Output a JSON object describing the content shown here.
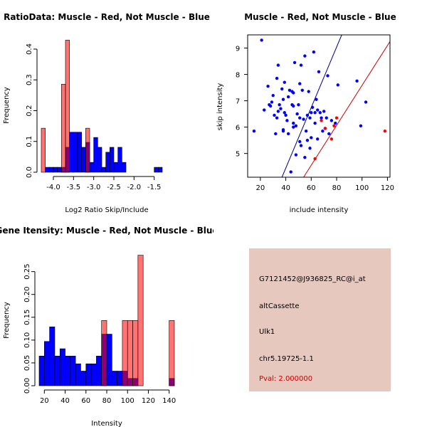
{
  "panels": {
    "ratio_hist": {
      "type": "bar",
      "title": "RatioData: Muscle - Red, Not Muscle - Blue",
      "xlabel": "Log2 Ratio Skip/Include",
      "ylabel": "Frequency",
      "xlim": [
        -4.3,
        -1.0
      ],
      "ylim": [
        0,
        0.43
      ],
      "xticks": [
        -4.0,
        -3.5,
        -3.0,
        -2.5,
        -2.0,
        -1.5
      ],
      "xtick_labels": [
        "-4.0",
        "-3.5",
        "-3.0",
        "-2.5",
        "-2.0",
        "-1.5"
      ],
      "yticks": [
        0.0,
        0.1,
        0.2,
        0.3,
        0.4
      ],
      "ytick_labels": [
        "0.0",
        "0.1",
        "0.2",
        "0.3",
        "0.4"
      ],
      "series": [
        {
          "name": "Not Muscle",
          "color": "#0000ff",
          "bins": [
            [
              -4.2,
              -4.1,
              0.016
            ],
            [
              -4.1,
              -4.0,
              0.016
            ],
            [
              -4.0,
              -3.9,
              0.016
            ],
            [
              -3.9,
              -3.8,
              0.016
            ],
            [
              -3.8,
              -3.7,
              0.016
            ],
            [
              -3.7,
              -3.6,
              0.081
            ],
            [
              -3.6,
              -3.5,
              0.13
            ],
            [
              -3.5,
              -3.4,
              0.13
            ],
            [
              -3.4,
              -3.3,
              0.13
            ],
            [
              -3.3,
              -3.2,
              0.081
            ],
            [
              -3.2,
              -3.1,
              0.097
            ],
            [
              -3.1,
              -3.0,
              0.032
            ],
            [
              -3.0,
              -2.9,
              0.113
            ],
            [
              -2.9,
              -2.8,
              0.081
            ],
            [
              -2.8,
              -2.7,
              0.016
            ],
            [
              -2.7,
              -2.6,
              0.065
            ],
            [
              -2.6,
              -2.5,
              0.081
            ],
            [
              -2.5,
              -2.4,
              0.032
            ],
            [
              -2.4,
              -2.3,
              0.081
            ],
            [
              -2.3,
              -2.2,
              0.032
            ],
            [
              -1.5,
              -1.4,
              0.016
            ],
            [
              -1.4,
              -1.3,
              0.016
            ]
          ]
        },
        {
          "name": "Muscle",
          "color": "#ff0000",
          "bins": [
            [
              -4.3,
              -4.2,
              0.143
            ],
            [
              -3.8,
              -3.7,
              0.286
            ],
            [
              -3.7,
              -3.6,
              0.429
            ],
            [
              -3.2,
              -3.1,
              0.143
            ]
          ]
        }
      ]
    },
    "scatter": {
      "type": "scatter",
      "title": "Muscle - Red, Not Muscle - Blue",
      "xlabel": "include intensity",
      "ylabel": "skip intensity",
      "xlim": [
        10,
        122
      ],
      "ylim": [
        4.1,
        9.5
      ],
      "xticks": [
        20,
        40,
        60,
        80,
        100,
        120
      ],
      "xtick_labels": [
        "20",
        "40",
        "60",
        "80",
        "100",
        "120"
      ],
      "yticks": [
        5,
        6,
        7,
        8,
        9
      ],
      "ytick_labels": [
        "5",
        "6",
        "7",
        "8",
        "9"
      ],
      "blue_points": [
        [
          15,
          5.85
        ],
        [
          21,
          9.3
        ],
        [
          23,
          6.65
        ],
        [
          26,
          7.55
        ],
        [
          27,
          6.85
        ],
        [
          28,
          6.8
        ],
        [
          29,
          6.95
        ],
        [
          30,
          7.2
        ],
        [
          31,
          6.45
        ],
        [
          32,
          5.75
        ],
        [
          33,
          6.35
        ],
        [
          33,
          7.85
        ],
        [
          34,
          6.6
        ],
        [
          34,
          8.35
        ],
        [
          35,
          6.85
        ],
        [
          36,
          6.7
        ],
        [
          37,
          7.45
        ],
        [
          38,
          5.85
        ],
        [
          38,
          5.9
        ],
        [
          38,
          7.05
        ],
        [
          39,
          6.55
        ],
        [
          39,
          7.7
        ],
        [
          40,
          6.45
        ],
        [
          41,
          6.25
        ],
        [
          42,
          7.15
        ],
        [
          42,
          5.75
        ],
        [
          43,
          7.4
        ],
        [
          44,
          4.3
        ],
        [
          45,
          6.85
        ],
        [
          45,
          7.35
        ],
        [
          46,
          6.0
        ],
        [
          46,
          6.15
        ],
        [
          46,
          6.8
        ],
        [
          46,
          7.3
        ],
        [
          47,
          8.45
        ],
        [
          48,
          4.95
        ],
        [
          48,
          6.05
        ],
        [
          49,
          6.5
        ],
        [
          50,
          6.85
        ],
        [
          51,
          5.45
        ],
        [
          51,
          6.35
        ],
        [
          51,
          7.65
        ],
        [
          52,
          8.35
        ],
        [
          52,
          5.3
        ],
        [
          53,
          7.4
        ],
        [
          54,
          6.3
        ],
        [
          55,
          8.7
        ],
        [
          55,
          4.85
        ],
        [
          56,
          5.85
        ],
        [
          57,
          5.5
        ],
        [
          57,
          6.45
        ],
        [
          58,
          7.35
        ],
        [
          59,
          6.35
        ],
        [
          59,
          5.2
        ],
        [
          60,
          6.55
        ],
        [
          60,
          5.6
        ],
        [
          61,
          6.75
        ],
        [
          62,
          8.85
        ],
        [
          63,
          6.15
        ],
        [
          63,
          6.55
        ],
        [
          64,
          7.05
        ],
        [
          65,
          6.65
        ],
        [
          65,
          5.55
        ],
        [
          66,
          8.1
        ],
        [
          67,
          6.55
        ],
        [
          68,
          6.35
        ],
        [
          69,
          5.85
        ],
        [
          70,
          6.6
        ],
        [
          71,
          5.95
        ],
        [
          72,
          6.35
        ],
        [
          73,
          7.95
        ],
        [
          74,
          5.75
        ],
        [
          76,
          6.25
        ],
        [
          79,
          6.15
        ],
        [
          81,
          7.6
        ],
        [
          96,
          7.75
        ],
        [
          99,
          6.05
        ],
        [
          103,
          6.95
        ]
      ],
      "red_points": [
        [
          63,
          4.8
        ],
        [
          68,
          6.25
        ],
        [
          71,
          5.95
        ],
        [
          76,
          5.55
        ],
        [
          78,
          6.05
        ],
        [
          80,
          6.35
        ],
        [
          118,
          5.85
        ]
      ],
      "lines": [
        {
          "color": "#00008b",
          "from": [
            37,
            4.1
          ],
          "to": [
            84,
            9.5
          ]
        },
        {
          "color": "#cc0000",
          "from": [
            54,
            4.1
          ],
          "to": [
            122,
            9.25
          ]
        }
      ]
    },
    "intensity_hist": {
      "type": "bar",
      "title": "Gene Itensity: Muscle - Red, Not Muscle - Blue",
      "xlabel": "Intensity",
      "ylabel": "Frequency",
      "xlim": [
        15,
        145
      ],
      "ylim": [
        0,
        0.29
      ],
      "xticks": [
        20,
        40,
        60,
        80,
        100,
        120,
        140
      ],
      "xtick_labels": [
        "20",
        "40",
        "60",
        "80",
        "100",
        "120",
        "140"
      ],
      "yticks": [
        0.0,
        0.05,
        0.1,
        0.15,
        0.2,
        0.25
      ],
      "ytick_labels": [
        "0.00",
        "0.05",
        "0.10",
        "0.15",
        "0.20",
        "0.25"
      ],
      "series": [
        {
          "name": "Not Muscle",
          "color": "#0000ff",
          "bins": [
            [
              15,
              20,
              0.065
            ],
            [
              20,
              25,
              0.097
            ],
            [
              25,
              30,
              0.129
            ],
            [
              30,
              35,
              0.065
            ],
            [
              35,
              40,
              0.081
            ],
            [
              40,
              45,
              0.065
            ],
            [
              45,
              50,
              0.065
            ],
            [
              50,
              55,
              0.048
            ],
            [
              55,
              60,
              0.032
            ],
            [
              60,
              65,
              0.048
            ],
            [
              65,
              70,
              0.048
            ],
            [
              70,
              75,
              0.065
            ],
            [
              75,
              80,
              0.113
            ],
            [
              80,
              85,
              0.113
            ],
            [
              85,
              90,
              0.032
            ],
            [
              90,
              95,
              0.032
            ],
            [
              95,
              100,
              0.032
            ],
            [
              100,
              105,
              0.016
            ],
            [
              105,
              110,
              0.016
            ],
            [
              140,
              145,
              0.016
            ]
          ]
        },
        {
          "name": "Muscle",
          "color": "#ff0000",
          "bins": [
            [
              75,
              80,
              0.143
            ],
            [
              95,
              100,
              0.143
            ],
            [
              100,
              105,
              0.143
            ],
            [
              105,
              110,
              0.143
            ],
            [
              110,
              115,
              0.286
            ],
            [
              140,
              145,
              0.143
            ]
          ]
        }
      ]
    }
  },
  "info": {
    "probe_id": "G7121452@J936825_RC@i_at",
    "event_type": "altCassette",
    "gene": "Ulk1",
    "location": "chr5.19725-1.1",
    "pval": "Pval: 2.000000",
    "pval_color": "#cc0000",
    "panel_color": "#e6c8bf"
  }
}
